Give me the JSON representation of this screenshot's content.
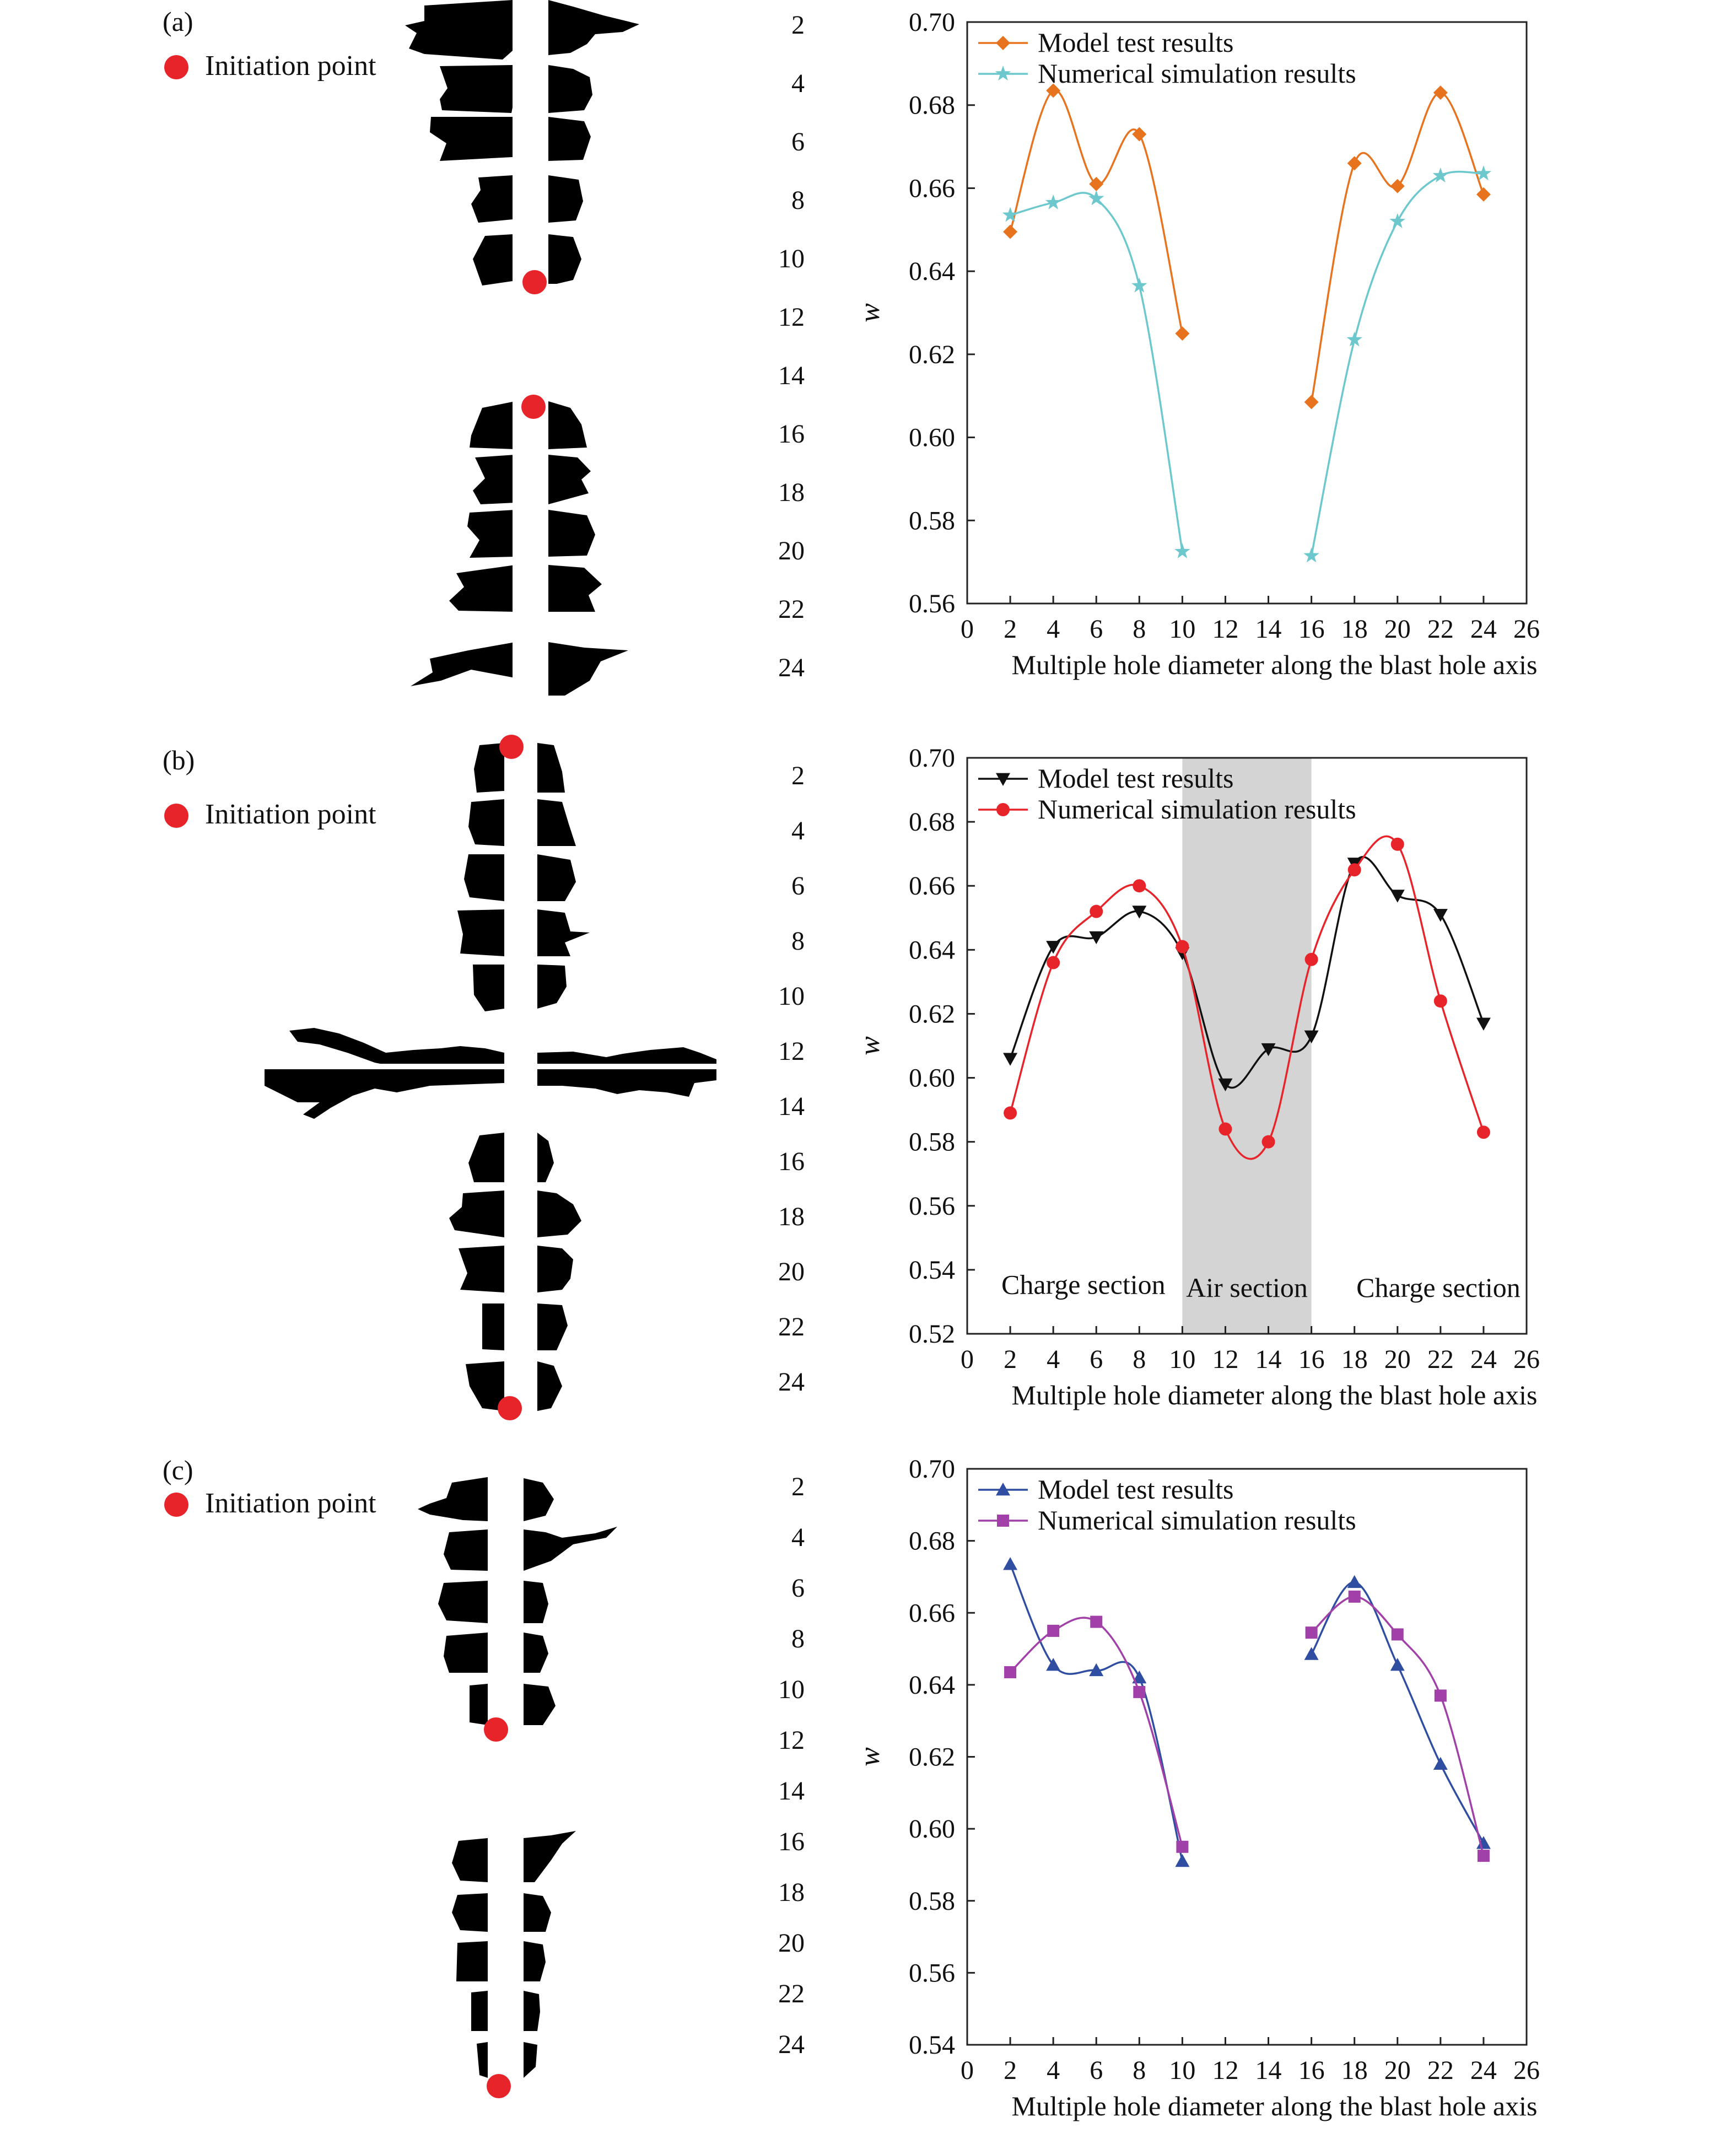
{
  "legend_initiation": "Initiation point",
  "panels": [
    {
      "label": "(a)"
    },
    {
      "label": "(b)"
    },
    {
      "label": "(c)"
    }
  ],
  "depth_labels": [
    "2",
    "4",
    "6",
    "8",
    "10",
    "12",
    "14",
    "16",
    "18",
    "20",
    "22",
    "24"
  ],
  "colors": {
    "initiation_dot": "#e8242b",
    "crack": "#000000",
    "air_shade": "#d4d4d4"
  },
  "chart_data": [
    {
      "type": "line",
      "xlabel": "Multiple  hole diameter along the blast hole axis",
      "ylabel": "w",
      "xlim": [
        0,
        26
      ],
      "ylim": [
        0.56,
        0.7
      ],
      "xticks": [
        0,
        2,
        4,
        6,
        8,
        10,
        12,
        14,
        16,
        18,
        20,
        22,
        24,
        26
      ],
      "yticks": [
        0.56,
        0.58,
        0.6,
        0.62,
        0.64,
        0.66,
        0.68,
        0.7
      ],
      "legend_position": "top-left",
      "series": [
        {
          "name": "Model test results",
          "color": "#e8731f",
          "marker": "diamond",
          "segments": [
            [
              [
                2,
                0.6495
              ],
              [
                4,
                0.6835
              ],
              [
                6,
                0.661
              ],
              [
                8,
                0.673
              ],
              [
                10,
                0.625
              ]
            ],
            [
              [
                16,
                0.6085
              ],
              [
                18,
                0.666
              ],
              [
                20,
                0.6605
              ],
              [
                22,
                0.683
              ],
              [
                24,
                0.6585
              ]
            ]
          ]
        },
        {
          "name": "Numerical simulation results",
          "color": "#6cc8cc",
          "marker": "star",
          "segments": [
            [
              [
                2,
                0.6535
              ],
              [
                4,
                0.6565
              ],
              [
                6,
                0.6575
              ],
              [
                8,
                0.6365
              ],
              [
                10,
                0.5725
              ]
            ],
            [
              [
                16,
                0.5715
              ],
              [
                18,
                0.6235
              ],
              [
                20,
                0.652
              ],
              [
                22,
                0.663
              ],
              [
                24,
                0.6635
              ]
            ]
          ]
        }
      ]
    },
    {
      "type": "line",
      "xlabel": "Multiple  hole diameter along the blast hole axis",
      "ylabel": "w",
      "xlim": [
        0,
        26
      ],
      "ylim": [
        0.52,
        0.7
      ],
      "xticks": [
        0,
        2,
        4,
        6,
        8,
        10,
        12,
        14,
        16,
        18,
        20,
        22,
        24,
        26
      ],
      "yticks": [
        0.52,
        0.54,
        0.56,
        0.58,
        0.6,
        0.62,
        0.64,
        0.66,
        0.68,
        0.7
      ],
      "legend_position": "top-left",
      "shaded_region": [
        10,
        16
      ],
      "annotations": [
        {
          "text": "Charge section",
          "x": 5.4,
          "y": 0.5325
        },
        {
          "text": "Air section",
          "x": 13,
          "y": 0.5315
        },
        {
          "text": "Charge section",
          "x": 21.9,
          "y": 0.5315
        }
      ],
      "series": [
        {
          "name": "Model test results",
          "color": "#111111",
          "marker": "triangle-down",
          "segments": [
            [
              [
                2,
                0.606
              ],
              [
                4,
                0.641
              ],
              [
                6,
                0.644
              ],
              [
                8,
                0.652
              ],
              [
                10,
                0.639
              ],
              [
                12,
                0.598
              ],
              [
                14,
                0.609
              ],
              [
                16,
                0.613
              ],
              [
                18,
                0.667
              ],
              [
                20,
                0.657
              ],
              [
                22,
                0.651
              ],
              [
                24,
                0.617
              ]
            ]
          ]
        },
        {
          "name": "Numerical simulation results",
          "color": "#e8242b",
          "marker": "circle",
          "segments": [
            [
              [
                2,
                0.589
              ],
              [
                4,
                0.636
              ],
              [
                6,
                0.652
              ],
              [
                8,
                0.66
              ],
              [
                10,
                0.641
              ],
              [
                12,
                0.584
              ],
              [
                14,
                0.58
              ],
              [
                16,
                0.637
              ],
              [
                18,
                0.665
              ],
              [
                20,
                0.673
              ],
              [
                22,
                0.624
              ],
              [
                24,
                0.583
              ]
            ]
          ]
        }
      ]
    },
    {
      "type": "line",
      "xlabel": "Multiple  hole diameter along the blast hole axis",
      "ylabel": "w",
      "xlim": [
        0,
        26
      ],
      "ylim": [
        0.54,
        0.7
      ],
      "xticks": [
        0,
        2,
        4,
        6,
        8,
        10,
        12,
        14,
        16,
        18,
        20,
        22,
        24,
        26
      ],
      "yticks": [
        0.54,
        0.56,
        0.58,
        0.6,
        0.62,
        0.64,
        0.66,
        0.68,
        0.7
      ],
      "legend_position": "top-left",
      "series": [
        {
          "name": "Model test results",
          "color": "#2f4ea2",
          "marker": "triangle-up",
          "segments": [
            [
              [
                2,
                0.6735
              ],
              [
                4,
                0.6455
              ],
              [
                6,
                0.644
              ],
              [
                8,
                0.642
              ],
              [
                10,
                0.591
              ]
            ],
            [
              [
                16,
                0.6485
              ],
              [
                18,
                0.6685
              ],
              [
                20,
                0.6455
              ],
              [
                22,
                0.618
              ],
              [
                24,
                0.596
              ]
            ]
          ]
        },
        {
          "name": "Numerical simulation results",
          "color": "#a040a8",
          "marker": "square",
          "segments": [
            [
              [
                2,
                0.6435
              ],
              [
                4,
                0.655
              ],
              [
                6,
                0.6575
              ],
              [
                8,
                0.638
              ],
              [
                10,
                0.595
              ]
            ],
            [
              [
                16,
                0.6545
              ],
              [
                18,
                0.6645
              ],
              [
                20,
                0.654
              ],
              [
                22,
                0.637
              ],
              [
                24,
                0.5925
              ]
            ]
          ]
        }
      ]
    }
  ]
}
